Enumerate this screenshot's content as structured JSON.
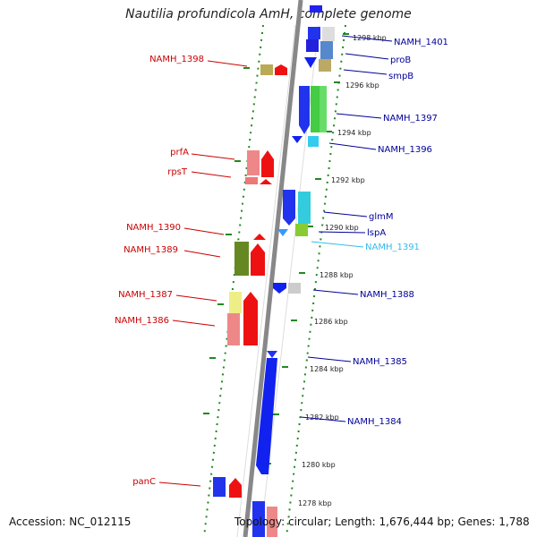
{
  "title": "Nautilia profundicola AmH, complete genome",
  "footer": {
    "accession": "Accession: NC_012115",
    "summary": "Topology: circular; Length: 1,676,444 bp; Genes: 1,788"
  },
  "colors": {
    "left_label": "#cc0000",
    "right_label": "#000099",
    "cyan_label": "#33bbee",
    "dotted_lines": "#228822",
    "backbone": "#888888"
  },
  "ticks": [
    "1298 kbp",
    "1296 kbp",
    "1294 kbp",
    "1292 kbp",
    "1290 kbp",
    "1288 kbp",
    "1286 kbp",
    "1284 kbp",
    "1282 kbp",
    "1280 kbp",
    "1278 kbp"
  ],
  "left_labels": [
    {
      "text": "NAMH_1398"
    },
    {
      "text": "prfA"
    },
    {
      "text": "rpsT"
    },
    {
      "text": "NAMH_1390"
    },
    {
      "text": "NAMH_1389"
    },
    {
      "text": "NAMH_1387"
    },
    {
      "text": "NAMH_1386"
    },
    {
      "text": "panC"
    }
  ],
  "right_labels": [
    {
      "text": "NAMH_1401"
    },
    {
      "text": "proB"
    },
    {
      "text": "smpB"
    },
    {
      "text": "NAMH_1397"
    },
    {
      "text": "NAMH_1396"
    },
    {
      "text": "glmM"
    },
    {
      "text": "lspA"
    },
    {
      "text": "NAMH_1391"
    },
    {
      "text": "NAMH_1388"
    },
    {
      "text": "NAMH_1385"
    },
    {
      "text": "NAMH_1384"
    }
  ]
}
